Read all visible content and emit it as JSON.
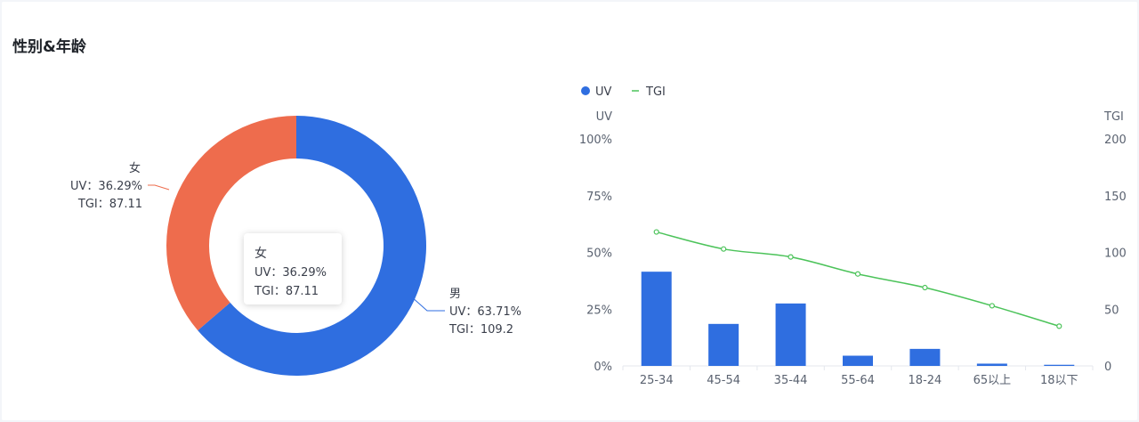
{
  "section": {
    "title": "性别&年龄"
  },
  "colors": {
    "uv": "#2f6ee0",
    "female": "#ee6c4d",
    "tgi_line": "#4cc35a",
    "axis": "#e4e7ed",
    "text": "#5a6270"
  },
  "chart_data": [
    {
      "type": "pie",
      "donut": true,
      "slices": [
        {
          "name": "男",
          "uv": 63.71,
          "uv_label": "UV：63.71%",
          "tgi": 109.2,
          "tgi_label": "TGI：109.2"
        },
        {
          "name": "女",
          "uv": 36.29,
          "uv_label": "UV：36.29%",
          "tgi": 87.11,
          "tgi_label": "TGI：87.11"
        }
      ],
      "tooltip": {
        "title": "女",
        "uv_label": "UV：36.29%",
        "tgi_label": "TGI：87.11"
      }
    },
    {
      "type": "bar",
      "legend": [
        "UV",
        "TGI"
      ],
      "legend_position": "top-left",
      "categories": [
        "25-34",
        "45-54",
        "35-44",
        "55-64",
        "18-24",
        "65以上",
        "18以下"
      ],
      "series": [
        {
          "name": "UV",
          "type": "bar",
          "axis": "left",
          "values": [
            41.5,
            18.5,
            27.5,
            4.5,
            7.5,
            1.0,
            0.5
          ]
        },
        {
          "name": "TGI",
          "type": "line",
          "axis": "right",
          "values": [
            118,
            103,
            96,
            81,
            69,
            53,
            35
          ]
        }
      ],
      "ylabel_left": "UV",
      "ylabel_right": "TGI",
      "yticks_left": [
        "0%",
        "25%",
        "50%",
        "75%",
        "100%"
      ],
      "yticks_right": [
        "0",
        "50",
        "100",
        "150",
        "200"
      ],
      "ylim_left": [
        0,
        100
      ],
      "ylim_right": [
        0,
        200
      ],
      "grid": false
    }
  ]
}
